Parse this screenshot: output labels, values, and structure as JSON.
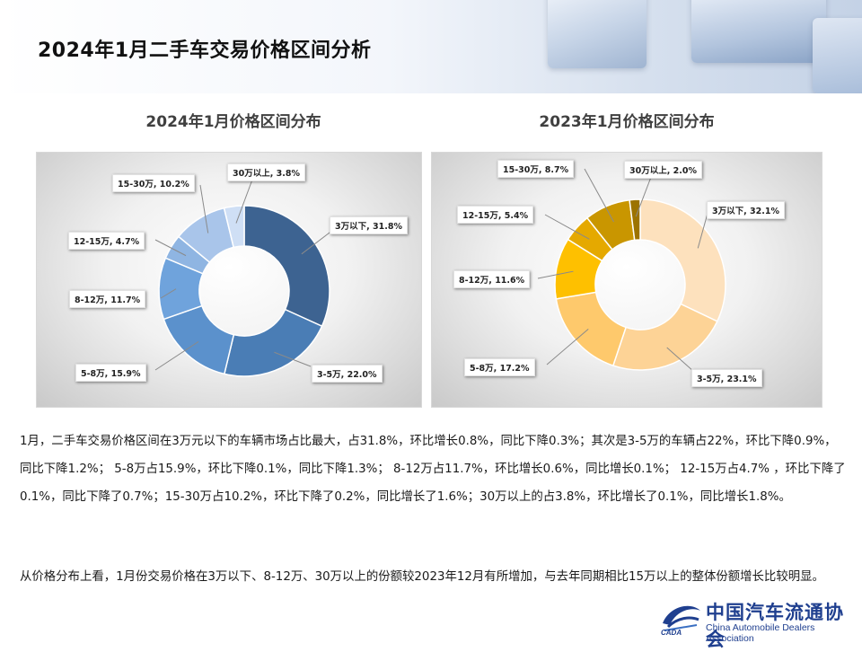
{
  "page_title": "2024年1月二手车交易价格区间分析",
  "chart_data": [
    {
      "type": "pie",
      "style": "donut",
      "title": "2024年1月价格区间分布",
      "categories": [
        "3万以下",
        "3-5万",
        "5-8万",
        "8-12万",
        "12-15万",
        "15-30万",
        "30万以上"
      ],
      "values": [
        31.8,
        22.0,
        15.9,
        11.7,
        4.7,
        10.2,
        3.8
      ],
      "labels": [
        "3万以下, 31.8%",
        "3-5万, 22.0%",
        "5-8万, 15.9%",
        "8-12万, 11.7%",
        "12-15万, 4.7%",
        "15-30万, 10.2%",
        "30万以上, 3.8%"
      ],
      "colors": [
        "#3d6391",
        "#4a7db5",
        "#5b91cc",
        "#6fa3dc",
        "#8fb5e2",
        "#a9c5ea",
        "#cfdff5"
      ]
    },
    {
      "type": "pie",
      "style": "donut",
      "title": "2023年1月价格区间分布",
      "categories": [
        "3万以下",
        "3-5万",
        "5-8万",
        "8-12万",
        "12-15万",
        "15-30万",
        "30万以上"
      ],
      "values": [
        32.1,
        23.1,
        17.2,
        11.6,
        5.4,
        8.7,
        2.0
      ],
      "labels": [
        "3万以下, 32.1%",
        "3-5万, 23.1%",
        "5-8万, 17.2%",
        "8-12万, 11.6%",
        "12-15万, 5.4%",
        "15-30万, 8.7%",
        "30万以上, 2.0%"
      ],
      "colors": [
        "#fde1bd",
        "#fdd396",
        "#fec96c",
        "#fec000",
        "#e5a900",
        "#c99600",
        "#9c7300"
      ]
    }
  ],
  "analysis": {
    "paragraph1": "1月，二手车交易价格区间在3万元以下的车辆市场占比最大，占31.8%，环比增长0.8%，同比下降0.3%；其次是3-5万的车辆占22%，环比下降0.9%，同比下降1.2%；  5-8万占15.9%，环比下降0.1%，同比下降1.3%；  8-12万占11.7%，环比增长0.6%，同比增长0.1%；  12-15万占4.7% ，环比下降了0.1%，同比下降了0.7%；15-30万占10.2%，环比下降了0.2%，同比增长了1.6%；30万以上的占3.8%，环比增长了0.1%，同比增长1.8%。",
    "paragraph2": "从价格分布上看，1月份交易价格在3万以下、8-12万、30万以上的份额较2023年12月有所增加，与去年同期相比15万以上的整体份额增长比较明显。"
  },
  "logo": {
    "name_zh": "中国汽车流通协会",
    "name_en": "China Automobile Dealers Association",
    "abbr": "CADA"
  }
}
